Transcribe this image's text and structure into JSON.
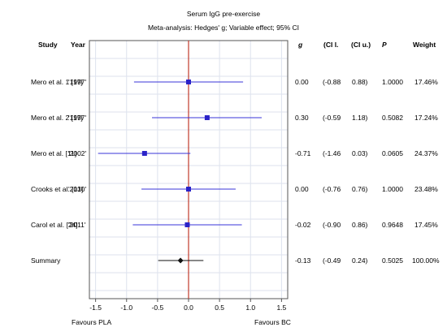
{
  "chart_data": {
    "type": "forest",
    "title": "Serum IgG pre-exercise",
    "subtitle": "Meta-analysis: Hedges' g; Variable effect; 95% CI",
    "headers": {
      "study": "Study",
      "year": "Year",
      "g": "g",
      "cil": "(CI l.",
      "ciu": "(CI u.)",
      "p": "P",
      "weight": "Weight"
    },
    "rows": [
      {
        "study": "Mero et al. 1 [17]",
        "year": "'1997'",
        "g": 0.0,
        "ci_l": -0.88,
        "ci_u": 0.88,
        "g_text": "0.00",
        "cil_text": "(-0.88",
        "ciu_text": "0.88)",
        "p_text": "1.0000",
        "weight_text": "17.46%"
      },
      {
        "study": "Mero et al. 2 [17]",
        "year": "'1997'",
        "g": 0.3,
        "ci_l": -0.59,
        "ci_u": 1.18,
        "g_text": "0.30",
        "cil_text": "(-0.59",
        "ciu_text": "1.18)",
        "p_text": "0.5082",
        "weight_text": "17.24%"
      },
      {
        "study": "Mero et al. [11]",
        "year": "'2002'",
        "g": -0.71,
        "ci_l": -1.46,
        "ci_u": 0.03,
        "g_text": "-0.71",
        "cil_text": "(-1.46",
        "ciu_text": "0.03)",
        "p_text": "0.0605",
        "weight_text": "24.37%"
      },
      {
        "study": "Crooks et al. [13]",
        "year": "'2010'",
        "g": 0.0,
        "ci_l": -0.76,
        "ci_u": 0.76,
        "g_text": "0.00",
        "cil_text": "(-0.76",
        "ciu_text": "0.76)",
        "p_text": "1.0000",
        "weight_text": "23.48%"
      },
      {
        "study": "Carol et al. [24]",
        "year": "'2011'",
        "g": -0.02,
        "ci_l": -0.9,
        "ci_u": 0.86,
        "g_text": "-0.02",
        "cil_text": "(-0.90",
        "ciu_text": "0.86)",
        "p_text": "0.9648",
        "weight_text": "17.45%"
      }
    ],
    "summary": {
      "study": "Summary",
      "g": -0.13,
      "ci_l": -0.49,
      "ci_u": 0.24,
      "g_text": "-0.13",
      "cil_text": "(-0.49",
      "ciu_text": "0.24)",
      "p_text": "0.5025",
      "weight_text": "100.00%"
    },
    "xlim": [
      -1.6,
      1.6
    ],
    "xticks": [
      -1.5,
      -1.0,
      -0.5,
      0.0,
      0.5,
      1.0,
      1.5
    ],
    "xtick_labels": [
      "-1.5",
      "-1.0",
      "-0.5",
      "0.0",
      "0.5",
      "1.0",
      "1.5"
    ],
    "favours_left": "Favours PLA",
    "favours_right": "Favours BC",
    "colors": {
      "marker": "#2b23c8",
      "ci_line": "#3a35d8",
      "zero_line": "#c0392b",
      "summary": "#111111",
      "frame": "#555555",
      "grid": "#dde2ee"
    }
  }
}
